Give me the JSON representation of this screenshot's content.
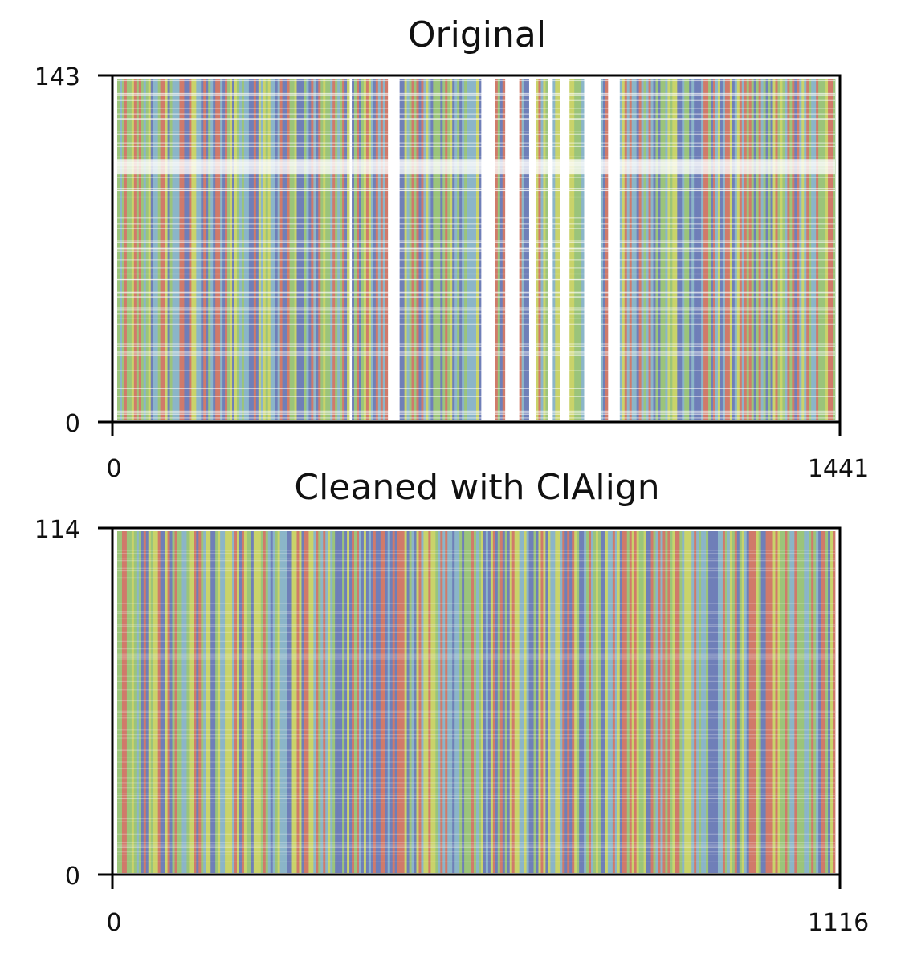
{
  "chart_data": [
    {
      "type": "heatmap",
      "title": "Original",
      "xlabel": "",
      "ylabel": "",
      "xlim": [
        0,
        1441
      ],
      "ylim": [
        0,
        143
      ],
      "x_ticks": [
        "0",
        "1441"
      ],
      "y_ticks": [
        "0",
        "143"
      ],
      "grid": false,
      "legend": "none",
      "rows": 143,
      "columns": 1441,
      "colors": {
        "A": "#c9d36a",
        "C": "#8bb5c8",
        "G": "#6f7fb8",
        "T": "#9bc47a",
        "X": "#d07a6a",
        "gap": "#ffffff"
      },
      "gap_columns": [
        [
          465,
          470
        ],
        [
          543,
          565
        ],
        [
          730,
          757
        ],
        [
          776,
          805
        ],
        [
          826,
          840
        ],
        [
          864,
          876
        ],
        [
          888,
          908
        ],
        [
          935,
          972
        ],
        [
          986,
          1008
        ]
      ],
      "gap_rows": [
        [
          103,
          109
        ]
      ]
    },
    {
      "type": "heatmap",
      "title": "Cleaned with CIAlign",
      "xlabel": "",
      "ylabel": "",
      "xlim": [
        0,
        1116
      ],
      "ylim": [
        0,
        114
      ],
      "x_ticks": [
        "0",
        "1116"
      ],
      "y_ticks": [
        "0",
        "114"
      ],
      "grid": false,
      "legend": "none",
      "rows": 114,
      "columns": 1116,
      "colors": {
        "A": "#c9d36a",
        "C": "#8bb5c8",
        "G": "#6f7fb8",
        "T": "#9bc47a",
        "X": "#d07a6a",
        "gap": "#ffffff"
      },
      "gap_columns": [],
      "gap_rows": []
    }
  ]
}
